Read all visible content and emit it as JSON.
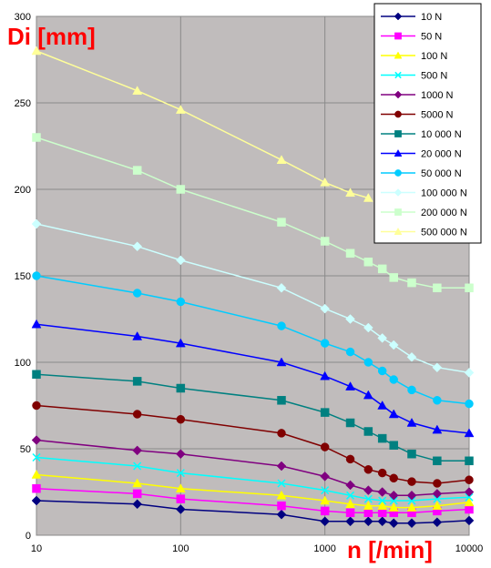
{
  "chart_data": {
    "type": "line",
    "xlabel": "n [/min]",
    "ylabel": "Di [mm]",
    "xscale": "log",
    "xlim": [
      10,
      10000
    ],
    "ylim": [
      0,
      300
    ],
    "xticks": [
      10,
      100,
      1000,
      10000
    ],
    "xtick_labels": [
      "10",
      "100",
      "1000",
      "10000"
    ],
    "yticks": [
      0,
      50,
      100,
      150,
      200,
      250,
      300
    ],
    "ytick_labels": [
      "0",
      "50",
      "100",
      "150",
      "200",
      "250",
      "300"
    ],
    "grid": true,
    "legend_position": "top-right",
    "plot_background": "#c0bcbc",
    "series": [
      {
        "name": "10 N",
        "color": "#000080",
        "marker": "diamond",
        "x": [
          10,
          50,
          100,
          500,
          1000,
          1500,
          2000,
          2500,
          3000,
          4000,
          6000,
          10000
        ],
        "y": [
          20,
          18,
          15,
          12,
          8,
          8,
          8,
          8,
          7,
          7,
          7.5,
          8.5
        ]
      },
      {
        "name": "50 N",
        "color": "#ff00ff",
        "marker": "square",
        "x": [
          10,
          50,
          100,
          500,
          1000,
          1500,
          2000,
          2500,
          3000,
          4000,
          6000,
          10000
        ],
        "y": [
          27,
          24,
          21,
          17,
          14,
          13,
          13,
          13,
          13,
          13,
          14,
          15
        ]
      },
      {
        "name": "100 N",
        "color": "#ffff00",
        "marker": "triangle",
        "x": [
          10,
          50,
          100,
          500,
          1000,
          1500,
          2000,
          2500,
          3000,
          4000,
          6000,
          10000
        ],
        "y": [
          35,
          30,
          27,
          23,
          20,
          18,
          17,
          17,
          16,
          16,
          17,
          19
        ]
      },
      {
        "name": "500 N",
        "color": "#00ffff",
        "marker": "x",
        "x": [
          10,
          50,
          100,
          500,
          1000,
          1500,
          2000,
          2500,
          3000,
          4000,
          6000,
          10000
        ],
        "y": [
          45,
          40,
          36,
          30,
          26,
          23,
          21,
          20,
          20,
          20,
          21,
          22
        ]
      },
      {
        "name": "1000 N",
        "color": "#800080",
        "marker": "diamond",
        "x": [
          10,
          50,
          100,
          500,
          1000,
          1500,
          2000,
          2500,
          3000,
          4000,
          6000,
          10000
        ],
        "y": [
          55,
          49,
          47,
          40,
          34,
          29,
          26,
          25,
          23,
          23,
          24,
          25
        ]
      },
      {
        "name": "5000 N",
        "color": "#800000",
        "marker": "circle",
        "x": [
          10,
          50,
          100,
          500,
          1000,
          1500,
          2000,
          2500,
          3000,
          4000,
          6000,
          10000
        ],
        "y": [
          75,
          70,
          67,
          59,
          51,
          44,
          38,
          36,
          33,
          31,
          30,
          32
        ]
      },
      {
        "name": "10 000 N",
        "color": "#008080",
        "marker": "square",
        "x": [
          10,
          50,
          100,
          500,
          1000,
          1500,
          2000,
          2500,
          3000,
          4000,
          6000,
          10000
        ],
        "y": [
          93,
          89,
          85,
          78,
          71,
          65,
          60,
          56,
          52,
          47,
          43,
          43
        ]
      },
      {
        "name": "20 000 N",
        "color": "#0000ff",
        "marker": "triangle",
        "x": [
          10,
          50,
          100,
          500,
          1000,
          1500,
          2000,
          2500,
          3000,
          4000,
          6000,
          10000
        ],
        "y": [
          122,
          115,
          111,
          100,
          92,
          86,
          81,
          75,
          70,
          65,
          61,
          59
        ]
      },
      {
        "name": "50 000 N",
        "color": "#00ccff",
        "marker": "circle",
        "x": [
          10,
          50,
          100,
          500,
          1000,
          1500,
          2000,
          2500,
          3000,
          4000,
          6000,
          10000
        ],
        "y": [
          150,
          140,
          135,
          121,
          111,
          106,
          100,
          95,
          90,
          84,
          78,
          76
        ]
      },
      {
        "name": "100 000 N",
        "color": "#ccffff",
        "marker": "diamond",
        "x": [
          10,
          50,
          100,
          500,
          1000,
          1500,
          2000,
          2500,
          3000,
          4000,
          6000,
          10000
        ],
        "y": [
          180,
          167,
          159,
          143,
          131,
          125,
          120,
          114,
          110,
          103,
          97,
          94
        ]
      },
      {
        "name": "200 000 N",
        "color": "#ccffcc",
        "marker": "square",
        "x": [
          10,
          50,
          100,
          500,
          1000,
          1500,
          2000,
          2500,
          3000,
          4000,
          6000,
          10000
        ],
        "y": [
          230,
          211,
          200,
          181,
          170,
          163,
          158,
          154,
          149,
          146,
          143,
          143
        ]
      },
      {
        "name": "500 000 N",
        "color": "#ffff99",
        "marker": "triangle",
        "x": [
          10,
          50,
          100,
          500,
          1000,
          1500,
          2000
        ],
        "y": [
          280,
          257,
          246,
          217,
          204,
          198,
          195
        ]
      }
    ]
  }
}
